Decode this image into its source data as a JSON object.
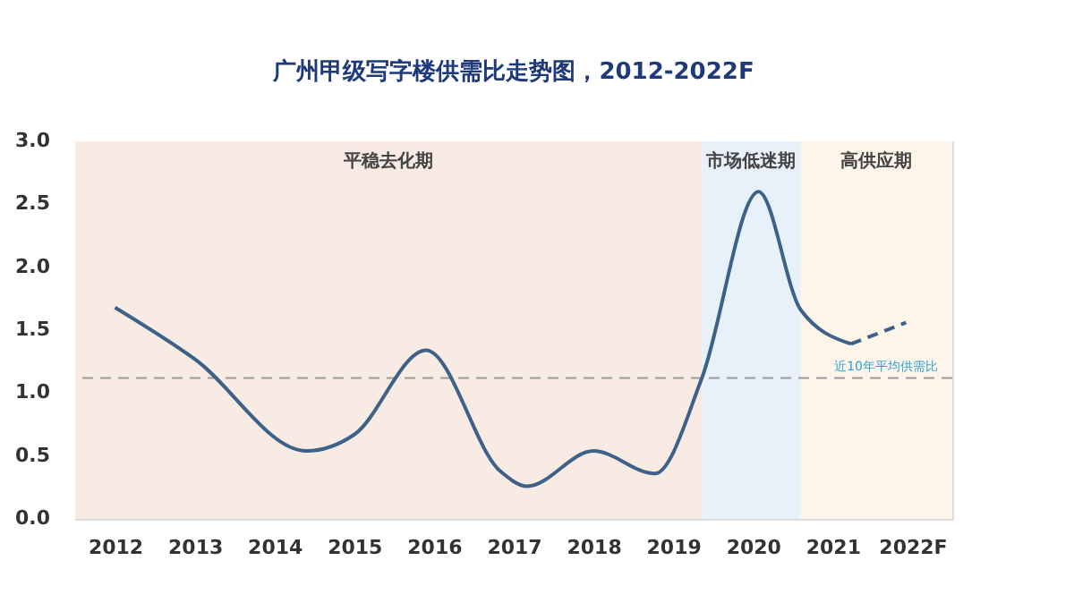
{
  "chart_data": {
    "type": "line",
    "title": "广州甲级写字楼供需比走势图，2012-2022F",
    "xlim": [
      2011.5,
      2022.5
    ],
    "xticks": [
      2012,
      2013,
      2014,
      2015,
      2016,
      2017,
      2018,
      2019,
      2020,
      2021,
      {
        "value": 2022,
        "label": "2022F"
      }
    ],
    "ylim": [
      0,
      3.0
    ],
    "yticks": [
      {
        "value": 0,
        "label": "0.0"
      },
      0.5,
      {
        "value": 1,
        "label": "1.0"
      },
      1.5,
      {
        "value": 2,
        "label": "2.0"
      },
      2.5,
      {
        "value": 3,
        "label": "3.0"
      }
    ],
    "grid": false,
    "marker": "none",
    "series": [
      {
        "color": "#3d6189",
        "line_style": "solid",
        "x": [
          2012,
          2013,
          2014.4,
          2015,
          2015.9,
          2016.83,
          2017.17,
          2018,
          2018.77,
          2019.36,
          2020.07,
          2020.6,
          2021.23
        ],
        "values": [
          1.68,
          1.27,
          0.54,
          0.67,
          1.34,
          0.38,
          0.26,
          0.54,
          0.36,
          1.12,
          2.6,
          1.66,
          1.39
        ]
      },
      {
        "color": "#3d6189",
        "line_style": "dashed",
        "x": [
          2021.23,
          2021.92
        ],
        "values": [
          1.39,
          1.56
        ]
      }
    ],
    "ref_lines": [
      {
        "axis": "y",
        "value": 1.12,
        "label": "近10年平均供需比",
        "color": "#9a9a9a",
        "line_style": "dashed"
      }
    ],
    "bands": [
      {
        "axis": "x",
        "from": 2011.5,
        "to": 2019.36,
        "label": "平稳去化期",
        "color": "#f8ebe4"
      },
      {
        "axis": "x",
        "from": 2019.36,
        "to": 2020.6,
        "label": "市场低迷期",
        "color": "#e8f1fa"
      },
      {
        "axis": "x",
        "from": 2020.6,
        "to": 2022.5,
        "label": "高供应期",
        "color": "#fdf5e9"
      }
    ]
  }
}
